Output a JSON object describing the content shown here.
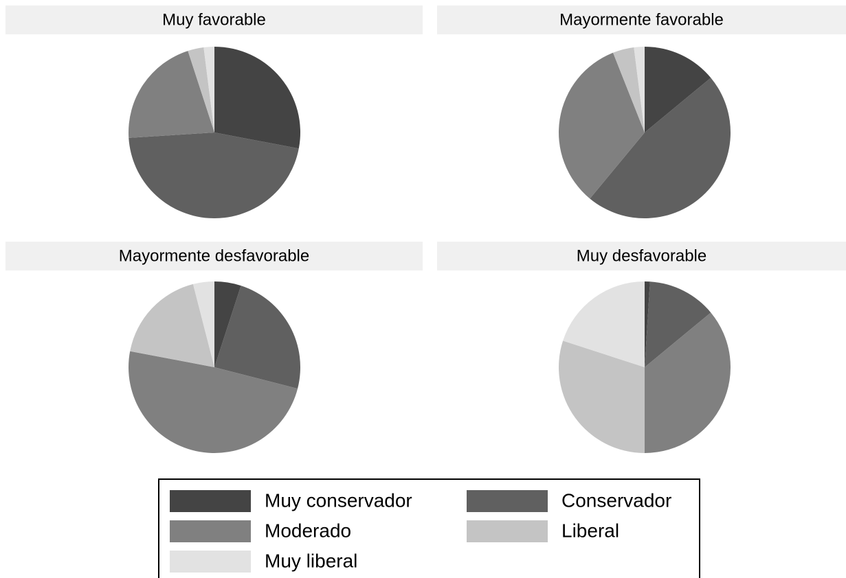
{
  "chart_data": [
    {
      "type": "pie",
      "title": "Muy favorable",
      "categories": [
        "Muy conservador",
        "Conservador",
        "Moderado",
        "Liberal",
        "Muy liberal"
      ],
      "values": [
        28,
        46,
        21,
        3,
        2
      ],
      "colors": [
        "#444444",
        "#606060",
        "#808080",
        "#c4c4c4",
        "#e2e2e2"
      ]
    },
    {
      "type": "pie",
      "title": "Mayormente favorable",
      "categories": [
        "Muy conservador",
        "Conservador",
        "Moderado",
        "Liberal",
        "Muy liberal"
      ],
      "values": [
        14,
        47,
        33,
        4,
        2
      ],
      "colors": [
        "#444444",
        "#606060",
        "#808080",
        "#c4c4c4",
        "#e2e2e2"
      ]
    },
    {
      "type": "pie",
      "title": "Mayormente desfavorable",
      "categories": [
        "Muy conservador",
        "Conservador",
        "Moderado",
        "Liberal",
        "Muy liberal"
      ],
      "values": [
        5,
        24,
        49,
        18,
        4
      ],
      "colors": [
        "#444444",
        "#606060",
        "#808080",
        "#c4c4c4",
        "#e2e2e2"
      ]
    },
    {
      "type": "pie",
      "title": "Muy desfavorable",
      "categories": [
        "Muy conservador",
        "Conservador",
        "Moderado",
        "Liberal",
        "Muy liberal"
      ],
      "values": [
        1,
        13,
        36,
        30,
        20
      ],
      "colors": [
        "#444444",
        "#606060",
        "#808080",
        "#c4c4c4",
        "#e2e2e2"
      ]
    }
  ]
}
